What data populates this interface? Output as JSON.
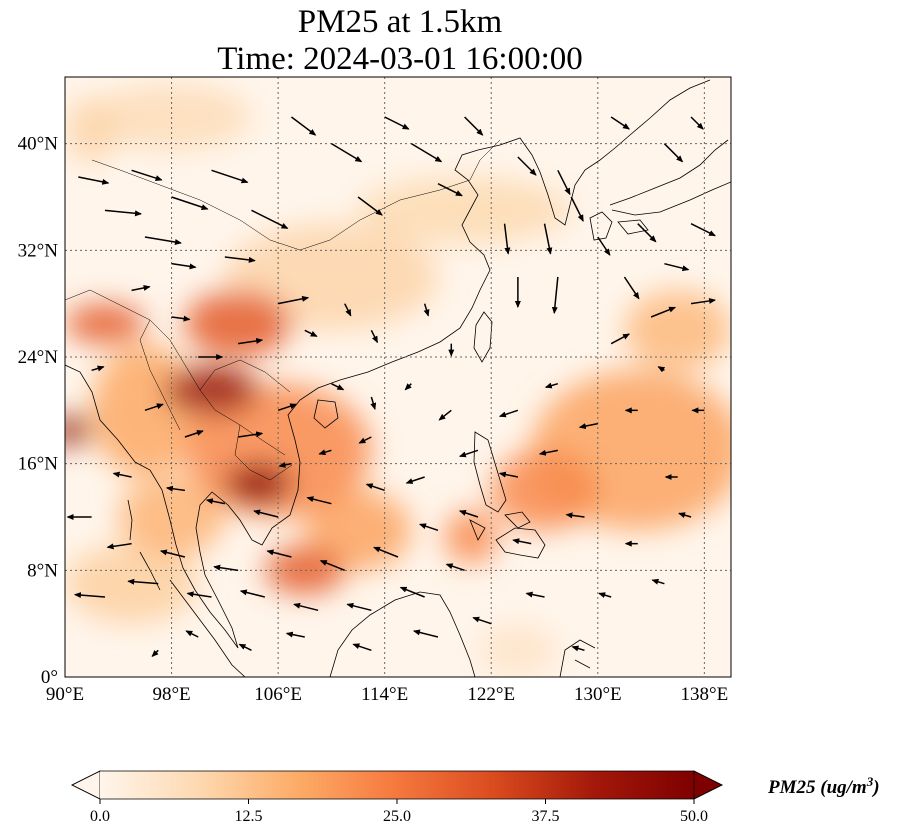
{
  "title": {
    "line1": "PM25 at 1.5km",
    "line2": "Time: 2024-03-01 16:00:00"
  },
  "map": {
    "lon_range": [
      90,
      140
    ],
    "lat_range": [
      0,
      45
    ],
    "lon_ticks": [
      {
        "value": 90,
        "label": "90°E"
      },
      {
        "value": 98,
        "label": "98°E"
      },
      {
        "value": 106,
        "label": "106°E"
      },
      {
        "value": 114,
        "label": "114°E"
      },
      {
        "value": 122,
        "label": "122°E"
      },
      {
        "value": 130,
        "label": "130°E"
      },
      {
        "value": 138,
        "label": "138°E"
      }
    ],
    "lat_ticks": [
      {
        "value": 0,
        "label": "0°"
      },
      {
        "value": 8,
        "label": "8°N"
      },
      {
        "value": 16,
        "label": "16°N"
      },
      {
        "value": 24,
        "label": "24°N"
      },
      {
        "value": 32,
        "label": "32°N"
      },
      {
        "value": 40,
        "label": "40°N"
      }
    ],
    "gridlines": true
  },
  "colorbar": {
    "label": "PM25 (ug/m",
    "label_sup": "3",
    "label_end": ")",
    "range": [
      0,
      50
    ],
    "ticks": [
      {
        "value": 0,
        "label": "0.0"
      },
      {
        "value": 12.5,
        "label": "12.5"
      },
      {
        "value": 25,
        "label": "25.0"
      },
      {
        "value": 37.5,
        "label": "37.5"
      },
      {
        "value": 50,
        "label": "50.0"
      }
    ],
    "colors": [
      "#fff5eb",
      "#fdd9b0",
      "#fdab67",
      "#f5783d",
      "#d94a1e",
      "#a3180a",
      "#7f0000"
    ],
    "extend": "both"
  },
  "pm25_patches": [
    {
      "lon": 104.5,
      "lat": 14.5,
      "rx": 2.5,
      "ry": 1.5,
      "value": 48
    },
    {
      "lon": 101.0,
      "lat": 21.5,
      "rx": 3.5,
      "ry": 1.8,
      "value": 44
    },
    {
      "lon": 90.5,
      "lat": 18.5,
      "rx": 1.5,
      "ry": 1.2,
      "value": 45
    },
    {
      "lon": 103.0,
      "lat": 26.5,
      "rx": 4.0,
      "ry": 2.5,
      "value": 30
    },
    {
      "lon": 93.0,
      "lat": 26.5,
      "rx": 3.0,
      "ry": 1.5,
      "value": 30
    },
    {
      "lon": 106.0,
      "lat": 17.0,
      "rx": 7.0,
      "ry": 5.0,
      "value": 22
    },
    {
      "lon": 108.0,
      "lat": 8.0,
      "rx": 3.0,
      "ry": 1.8,
      "value": 30
    },
    {
      "lon": 133.0,
      "lat": 17.0,
      "rx": 8.0,
      "ry": 6.0,
      "value": 18
    },
    {
      "lon": 126.0,
      "lat": 14.0,
      "rx": 4.0,
      "ry": 3.0,
      "value": 22
    },
    {
      "lon": 96.0,
      "lat": 20.0,
      "rx": 4.0,
      "ry": 5.0,
      "value": 17
    },
    {
      "lon": 98.0,
      "lat": 12.0,
      "rx": 4.0,
      "ry": 3.0,
      "value": 15
    },
    {
      "lon": 112.0,
      "lat": 11.0,
      "rx": 4.0,
      "ry": 3.0,
      "value": 18
    },
    {
      "lon": 120.5,
      "lat": 10.5,
      "rx": 2.0,
      "ry": 2.0,
      "value": 22
    },
    {
      "lon": 110.0,
      "lat": 30.0,
      "rx": 8.0,
      "ry": 4.0,
      "value": 9
    },
    {
      "lon": 120.0,
      "lat": 35.0,
      "rx": 8.0,
      "ry": 2.5,
      "value": 8
    },
    {
      "lon": 92.0,
      "lat": 41.0,
      "rx": 2.0,
      "ry": 2.5,
      "value": 9
    },
    {
      "lon": 98.0,
      "lat": 42.0,
      "rx": 6.0,
      "ry": 2.5,
      "value": 7
    },
    {
      "lon": 136.0,
      "lat": 26.0,
      "rx": 4.0,
      "ry": 3.0,
      "value": 14
    },
    {
      "lon": 124.0,
      "lat": 2.0,
      "rx": 3.0,
      "ry": 2.0,
      "value": 5
    },
    {
      "lon": 95.0,
      "lat": 7.0,
      "rx": 5.0,
      "ry": 3.0,
      "value": 10
    }
  ],
  "wind_vectors": [
    {
      "lon": 91,
      "lat": 37.5,
      "u": 2.5,
      "v": -0.5
    },
    {
      "lon": 93,
      "lat": 35,
      "u": 3.0,
      "v": -0.3
    },
    {
      "lon": 96,
      "lat": 33,
      "u": 3.0,
      "v": -0.5
    },
    {
      "lon": 95,
      "lat": 38,
      "u": 2.5,
      "v": -0.8
    },
    {
      "lon": 98,
      "lat": 36,
      "u": 3.0,
      "v": -1.0
    },
    {
      "lon": 101,
      "lat": 38,
      "u": 3.0,
      "v": -1.0
    },
    {
      "lon": 104,
      "lat": 35,
      "u": 3.0,
      "v": -1.5
    },
    {
      "lon": 102,
      "lat": 31.5,
      "u": 2.5,
      "v": -0.3
    },
    {
      "lon": 98,
      "lat": 31,
      "u": 2.0,
      "v": -0.3
    },
    {
      "lon": 107,
      "lat": 42,
      "u": 2.0,
      "v": -1.5
    },
    {
      "lon": 110,
      "lat": 40,
      "u": 2.5,
      "v": -1.5
    },
    {
      "lon": 112,
      "lat": 36,
      "u": 2.0,
      "v": -1.5
    },
    {
      "lon": 116,
      "lat": 40,
      "u": 2.5,
      "v": -1.5
    },
    {
      "lon": 118,
      "lat": 37,
      "u": 2.0,
      "v": -1.0
    },
    {
      "lon": 114,
      "lat": 42,
      "u": 2.0,
      "v": -1.0
    },
    {
      "lon": 120,
      "lat": 42,
      "u": 1.5,
      "v": -1.5
    },
    {
      "lon": 124,
      "lat": 39,
      "u": 1.5,
      "v": -1.5
    },
    {
      "lon": 127,
      "lat": 38,
      "u": 1.0,
      "v": -2.0
    },
    {
      "lon": 128,
      "lat": 36,
      "u": 1.0,
      "v": -2.0
    },
    {
      "lon": 126,
      "lat": 34,
      "u": 0.5,
      "v": -2.5
    },
    {
      "lon": 123,
      "lat": 34,
      "u": 0.3,
      "v": -2.5
    },
    {
      "lon": 124,
      "lat": 30,
      "u": 0.0,
      "v": -2.5
    },
    {
      "lon": 127,
      "lat": 30,
      "u": -0.3,
      "v": -3.0
    },
    {
      "lon": 130,
      "lat": 33,
      "u": 1.0,
      "v": -1.5
    },
    {
      "lon": 133,
      "lat": 34,
      "u": 1.5,
      "v": -1.5
    },
    {
      "lon": 132,
      "lat": 30,
      "u": 1.2,
      "v": -1.8
    },
    {
      "lon": 135,
      "lat": 31,
      "u": 2.0,
      "v": -0.5
    },
    {
      "lon": 137,
      "lat": 34,
      "u": 2.0,
      "v": -1.0
    },
    {
      "lon": 134,
      "lat": 27,
      "u": 2.0,
      "v": 0.8
    },
    {
      "lon": 137,
      "lat": 28,
      "u": 2.0,
      "v": 0.3
    },
    {
      "lon": 131,
      "lat": 25,
      "u": 1.5,
      "v": 0.8
    },
    {
      "lon": 135,
      "lat": 40,
      "u": 1.5,
      "v": -1.5
    },
    {
      "lon": 131,
      "lat": 42,
      "u": 1.5,
      "v": -1.0
    },
    {
      "lon": 137,
      "lat": 42,
      "u": 1.0,
      "v": -1.0
    },
    {
      "lon": 106,
      "lat": 28,
      "u": 2.5,
      "v": 0.5
    },
    {
      "lon": 103,
      "lat": 25,
      "u": 2.0,
      "v": 0.3
    },
    {
      "lon": 108,
      "lat": 26,
      "u": 1.0,
      "v": -0.5
    },
    {
      "lon": 111,
      "lat": 28,
      "u": 0.5,
      "v": -1.0
    },
    {
      "lon": 113,
      "lat": 26,
      "u": 0.5,
      "v": -1.0
    },
    {
      "lon": 117,
      "lat": 28,
      "u": 0.3,
      "v": -1.0
    },
    {
      "lon": 119,
      "lat": 25,
      "u": 0.0,
      "v": -1.0
    },
    {
      "lon": 100,
      "lat": 24,
      "u": 2.0,
      "v": 0.0
    },
    {
      "lon": 98,
      "lat": 27,
      "u": 1.5,
      "v": -0.2
    },
    {
      "lon": 95,
      "lat": 29,
      "u": 1.5,
      "v": 0.3
    },
    {
      "lon": 92,
      "lat": 23,
      "u": 1.0,
      "v": 0.3
    },
    {
      "lon": 96,
      "lat": 20,
      "u": 1.5,
      "v": 0.5
    },
    {
      "lon": 99,
      "lat": 18,
      "u": 1.5,
      "v": 0.5
    },
    {
      "lon": 103,
      "lat": 18,
      "u": 2.0,
      "v": 0.3
    },
    {
      "lon": 106,
      "lat": 20,
      "u": 1.5,
      "v": 0.5
    },
    {
      "lon": 110,
      "lat": 22,
      "u": 1.0,
      "v": -0.5
    },
    {
      "lon": 113,
      "lat": 21,
      "u": 0.3,
      "v": -1.0
    },
    {
      "lon": 116,
      "lat": 22,
      "u": -0.5,
      "v": -0.5
    },
    {
      "lon": 119,
      "lat": 20,
      "u": -1.0,
      "v": -0.8
    },
    {
      "lon": 113,
      "lat": 18,
      "u": -1.0,
      "v": -0.5
    },
    {
      "lon": 110,
      "lat": 17,
      "u": -1.0,
      "v": -0.3
    },
    {
      "lon": 107,
      "lat": 16,
      "u": -1.0,
      "v": -0.2
    },
    {
      "lon": 117,
      "lat": 15,
      "u": -1.5,
      "v": -0.5
    },
    {
      "lon": 121,
      "lat": 17,
      "u": -1.5,
      "v": -0.5
    },
    {
      "lon": 124,
      "lat": 20,
      "u": -1.5,
      "v": -0.5
    },
    {
      "lon": 127,
      "lat": 22,
      "u": -1.0,
      "v": -0.3
    },
    {
      "lon": 130,
      "lat": 19,
      "u": -1.5,
      "v": -0.3
    },
    {
      "lon": 127,
      "lat": 17,
      "u": -1.5,
      "v": -0.3
    },
    {
      "lon": 124,
      "lat": 15,
      "u": -1.5,
      "v": 0.3
    },
    {
      "lon": 133,
      "lat": 20,
      "u": -1.0,
      "v": 0.0
    },
    {
      "lon": 136,
      "lat": 15,
      "u": -1.0,
      "v": 0.0
    },
    {
      "lon": 114,
      "lat": 14,
      "u": -1.5,
      "v": 0.5
    },
    {
      "lon": 110,
      "lat": 13,
      "u": -2.0,
      "v": 0.5
    },
    {
      "lon": 106,
      "lat": 12,
      "u": -2.0,
      "v": 0.5
    },
    {
      "lon": 102,
      "lat": 13,
      "u": -1.5,
      "v": 0.3
    },
    {
      "lon": 99,
      "lat": 14,
      "u": -1.5,
      "v": 0.2
    },
    {
      "lon": 95,
      "lat": 15,
      "u": -1.5,
      "v": 0.3
    },
    {
      "lon": 92,
      "lat": 12,
      "u": -2.0,
      "v": 0.0
    },
    {
      "lon": 95,
      "lat": 10,
      "u": -2.0,
      "v": -0.3
    },
    {
      "lon": 99,
      "lat": 9,
      "u": -2.0,
      "v": 0.5
    },
    {
      "lon": 103,
      "lat": 8,
      "u": -2.0,
      "v": 0.3
    },
    {
      "lon": 107,
      "lat": 9,
      "u": -2.0,
      "v": 0.5
    },
    {
      "lon": 111,
      "lat": 8,
      "u": -2.0,
      "v": 0.8
    },
    {
      "lon": 115,
      "lat": 9,
      "u": -2.0,
      "v": 0.8
    },
    {
      "lon": 118,
      "lat": 11,
      "u": -1.5,
      "v": 0.5
    },
    {
      "lon": 121,
      "lat": 12,
      "u": -1.5,
      "v": 0.5
    },
    {
      "lon": 120,
      "lat": 8,
      "u": -1.5,
      "v": 0.5
    },
    {
      "lon": 117,
      "lat": 6,
      "u": -2.0,
      "v": 0.8
    },
    {
      "lon": 113,
      "lat": 5,
      "u": -2.0,
      "v": 0.5
    },
    {
      "lon": 109,
      "lat": 5,
      "u": -2.0,
      "v": 0.5
    },
    {
      "lon": 105,
      "lat": 6,
      "u": -2.0,
      "v": 0.5
    },
    {
      "lon": 101,
      "lat": 6,
      "u": -2.0,
      "v": 0.3
    },
    {
      "lon": 97,
      "lat": 7,
      "u": -2.5,
      "v": 0.2
    },
    {
      "lon": 93,
      "lat": 6,
      "u": -2.5,
      "v": 0.2
    },
    {
      "lon": 100,
      "lat": 3,
      "u": -1.0,
      "v": 0.5
    },
    {
      "lon": 97,
      "lat": 2,
      "u": -0.5,
      "v": -0.5
    },
    {
      "lon": 104,
      "lat": 2,
      "u": -1.0,
      "v": 0.5
    },
    {
      "lon": 108,
      "lat": 3,
      "u": -1.5,
      "v": 0.3
    },
    {
      "lon": 113,
      "lat": 2,
      "u": -1.5,
      "v": 0.5
    },
    {
      "lon": 118,
      "lat": 3,
      "u": -2.0,
      "v": 0.5
    },
    {
      "lon": 122,
      "lat": 4,
      "u": -1.5,
      "v": 0.5
    },
    {
      "lon": 126,
      "lat": 6,
      "u": -1.5,
      "v": 0.3
    },
    {
      "lon": 129,
      "lat": 2,
      "u": -1.0,
      "v": 0.3
    },
    {
      "lon": 125,
      "lat": 10,
      "u": -1.5,
      "v": 0.3
    },
    {
      "lon": 129,
      "lat": 12,
      "u": -1.5,
      "v": 0.2
    },
    {
      "lon": 133,
      "lat": 10,
      "u": -1.0,
      "v": 0.0
    },
    {
      "lon": 137,
      "lat": 12,
      "u": -1.0,
      "v": 0.3
    },
    {
      "lon": 135,
      "lat": 7,
      "u": -1.0,
      "v": 0.3
    },
    {
      "lon": 131,
      "lat": 6,
      "u": -1.0,
      "v": 0.3
    },
    {
      "lon": 138,
      "lat": 20,
      "u": -1.0,
      "v": 0.0
    },
    {
      "lon": 135,
      "lat": 23,
      "u": -0.5,
      "v": 0.3
    }
  ]
}
